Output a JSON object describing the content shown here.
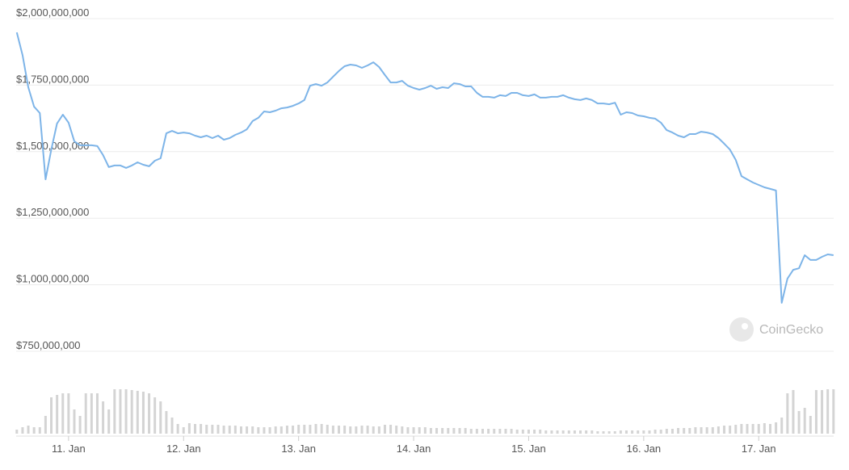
{
  "chart_data": {
    "type": "line",
    "watermark": "CoinGecko",
    "x": [
      10.55,
      10.6,
      10.65,
      10.7,
      10.75,
      10.8,
      10.85,
      10.9,
      10.95,
      11,
      11.05,
      11.1,
      11.15,
      11.2,
      11.25,
      11.3,
      11.35,
      11.4,
      11.45,
      11.5,
      11.55,
      11.6,
      11.65,
      11.7,
      11.75,
      11.8,
      11.85,
      11.9,
      11.95,
      12,
      12.05,
      12.1,
      12.15,
      12.2,
      12.25,
      12.3,
      12.35,
      12.4,
      12.45,
      12.5,
      12.55,
      12.6,
      12.65,
      12.7,
      12.75,
      12.8,
      12.85,
      12.9,
      12.95,
      13,
      13.05,
      13.1,
      13.15,
      13.2,
      13.25,
      13.3,
      13.35,
      13.4,
      13.45,
      13.5,
      13.55,
      13.6,
      13.65,
      13.7,
      13.75,
      13.8,
      13.85,
      13.9,
      13.95,
      14,
      14.05,
      14.1,
      14.15,
      14.2,
      14.25,
      14.3,
      14.35,
      14.4,
      14.45,
      14.5,
      14.55,
      14.6,
      14.65,
      14.7,
      14.75,
      14.8,
      14.85,
      14.9,
      14.95,
      15,
      15.05,
      15.1,
      15.15,
      15.2,
      15.25,
      15.3,
      15.35,
      15.4,
      15.45,
      15.5,
      15.55,
      15.6,
      15.65,
      15.7,
      15.75,
      15.8,
      15.85,
      15.9,
      15.95,
      16,
      16.05,
      16.1,
      16.15,
      16.2,
      16.25,
      16.3,
      16.35,
      16.4,
      16.45,
      16.5,
      16.55,
      16.6,
      16.65,
      16.7,
      16.75,
      16.8,
      16.85,
      16.9,
      16.95,
      17,
      17.05,
      17.1,
      17.15,
      17.2,
      17.25,
      17.3,
      17.35,
      17.4,
      17.45,
      17.5,
      17.55,
      17.6,
      17.65
    ],
    "values": [
      1948000000,
      1863000000,
      1742000000,
      1669000000,
      1645000000,
      1396000000,
      1508000000,
      1606000000,
      1639000000,
      1609000000,
      1539000000,
      1524000000,
      1524000000,
      1524000000,
      1521000000,
      1487000000,
      1442000000,
      1448000000,
      1448000000,
      1439000000,
      1448000000,
      1460000000,
      1451000000,
      1445000000,
      1466000000,
      1475000000,
      1569000000,
      1578000000,
      1569000000,
      1572000000,
      1569000000,
      1560000000,
      1554000000,
      1560000000,
      1551000000,
      1560000000,
      1545000000,
      1551000000,
      1563000000,
      1572000000,
      1584000000,
      1615000000,
      1627000000,
      1651000000,
      1648000000,
      1654000000,
      1663000000,
      1666000000,
      1672000000,
      1681000000,
      1694000000,
      1748000000,
      1754000000,
      1748000000,
      1760000000,
      1782000000,
      1803000000,
      1821000000,
      1827000000,
      1824000000,
      1815000000,
      1824000000,
      1836000000,
      1818000000,
      1788000000,
      1760000000,
      1760000000,
      1766000000,
      1748000000,
      1739000000,
      1733000000,
      1739000000,
      1748000000,
      1736000000,
      1742000000,
      1739000000,
      1757000000,
      1754000000,
      1745000000,
      1745000000,
      1721000000,
      1706000000,
      1706000000,
      1703000000,
      1712000000,
      1709000000,
      1721000000,
      1721000000,
      1712000000,
      1709000000,
      1715000000,
      1703000000,
      1703000000,
      1706000000,
      1706000000,
      1712000000,
      1703000000,
      1697000000,
      1694000000,
      1700000000,
      1694000000,
      1681000000,
      1681000000,
      1678000000,
      1684000000,
      1639000000,
      1648000000,
      1645000000,
      1636000000,
      1633000000,
      1627000000,
      1624000000,
      1609000000,
      1581000000,
      1572000000,
      1560000000,
      1554000000,
      1566000000,
      1566000000,
      1575000000,
      1572000000,
      1566000000,
      1551000000,
      1530000000,
      1508000000,
      1469000000,
      1408000000,
      1396000000,
      1384000000,
      1375000000,
      1366000000,
      1360000000,
      1354000000,
      932000000,
      1023000000,
      1056000000,
      1062000000,
      1111000000,
      1093000000,
      1093000000,
      1105000000,
      1114000000,
      1111000000
    ],
    "color": "#7db4e8",
    "volume": [
      5,
      8,
      10,
      8,
      8,
      22,
      45,
      48,
      50,
      50,
      30,
      22,
      50,
      50,
      50,
      40,
      30,
      55,
      55,
      55,
      54,
      53,
      52,
      50,
      45,
      40,
      28,
      20,
      12,
      8,
      13,
      12,
      12,
      11,
      11,
      11,
      10,
      10,
      10,
      9,
      9,
      9,
      8,
      8,
      8,
      9,
      9,
      10,
      10,
      11,
      11,
      11,
      12,
      12,
      11,
      10,
      10,
      10,
      9,
      9,
      10,
      10,
      9,
      9,
      11,
      11,
      10,
      9,
      8,
      8,
      8,
      8,
      7,
      7,
      7,
      7,
      7,
      7,
      7,
      6,
      6,
      6,
      6,
      6,
      6,
      6,
      6,
      5,
      5,
      5,
      5,
      5,
      4,
      4,
      4,
      4,
      4,
      4,
      4,
      4,
      4,
      3,
      3,
      3,
      3,
      4,
      4,
      4,
      4,
      4,
      4,
      5,
      5,
      6,
      6,
      7,
      7,
      7,
      8,
      8,
      8,
      8,
      9,
      10,
      10,
      11,
      12,
      12,
      12,
      12,
      13,
      12,
      14,
      20,
      50,
      54,
      28,
      32,
      22,
      54,
      54,
      55,
      55
    ],
    "volume_color": "#d4d4d4",
    "volume_lim": [
      0,
      60
    ],
    "xlim": [
      10.55,
      17.65
    ],
    "xticks": [
      {
        "value": 11,
        "label": "11. Jan"
      },
      {
        "value": 12,
        "label": "12. Jan"
      },
      {
        "value": 13,
        "label": "13. Jan"
      },
      {
        "value": 14,
        "label": "14. Jan"
      },
      {
        "value": 15,
        "label": "15. Jan"
      },
      {
        "value": 16,
        "label": "16. Jan"
      },
      {
        "value": 17,
        "label": "17. Jan"
      }
    ],
    "ylim": [
      750000000,
      2000000000
    ],
    "yticks": [
      {
        "value": 750000000,
        "label": "$750,000,000"
      },
      {
        "value": 1000000000,
        "label": "$1,000,000,000"
      },
      {
        "value": 1250000000,
        "label": "$1,250,000,000"
      },
      {
        "value": 1500000000,
        "label": "$1,500,000,000"
      },
      {
        "value": 1750000000,
        "label": "$1,750,000,000"
      },
      {
        "value": 2000000000,
        "label": "$2,000,000,000"
      }
    ],
    "grid": true
  }
}
